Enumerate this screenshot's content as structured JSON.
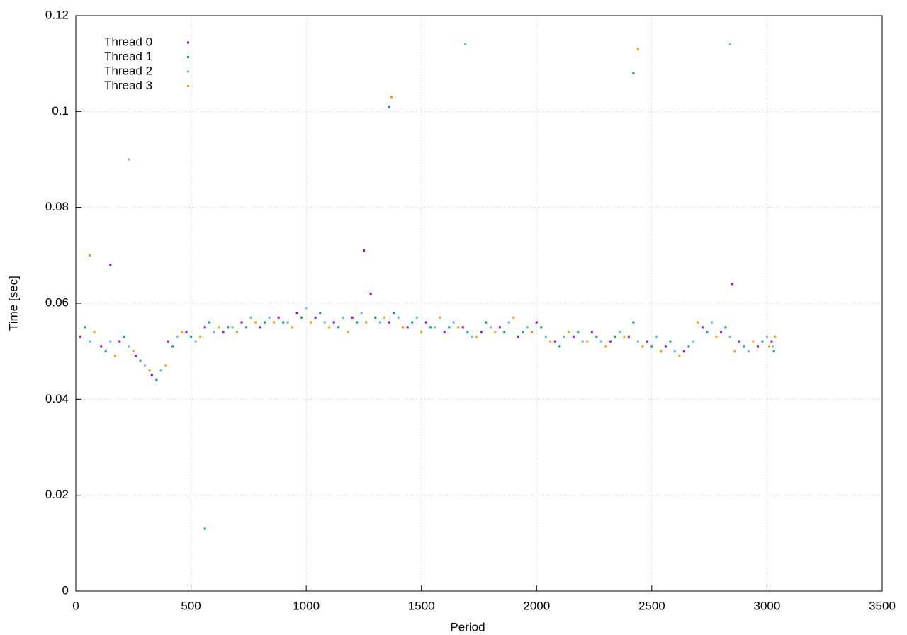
{
  "chart_data": {
    "type": "scatter",
    "xlabel": "Period",
    "ylabel": "Time [sec]",
    "xlim": [
      0,
      3500
    ],
    "ylim": [
      0,
      0.12
    ],
    "xticks": [
      0,
      500,
      1000,
      1500,
      2000,
      2500,
      3000,
      3500
    ],
    "yticks": [
      0,
      0.02,
      0.04,
      0.06,
      0.08,
      0.1,
      0.12
    ],
    "grid": true,
    "legend": "top-left",
    "series": [
      {
        "name": "Thread 0",
        "color": "#9400d3",
        "x": [
          20,
          110,
          190,
          260,
          330,
          400,
          480,
          560,
          640,
          720,
          800,
          880,
          960,
          1040,
          1120,
          1200,
          1280,
          1360,
          1440,
          1520,
          1600,
          1680,
          1760,
          1840,
          1920,
          2000,
          2080,
          2160,
          2240,
          2320,
          2400,
          2480,
          2560,
          2640,
          2720,
          2800,
          2880,
          2960,
          3020,
          150,
          1250,
          2850
        ],
        "values": [
          0.053,
          0.051,
          0.052,
          0.049,
          0.045,
          0.052,
          0.054,
          0.055,
          0.054,
          0.056,
          0.055,
          0.057,
          0.058,
          0.057,
          0.056,
          0.057,
          0.062,
          0.056,
          0.055,
          0.056,
          0.054,
          0.055,
          0.054,
          0.055,
          0.053,
          0.056,
          0.052,
          0.053,
          0.054,
          0.052,
          0.053,
          0.052,
          0.051,
          0.05,
          0.055,
          0.054,
          0.052,
          0.051,
          0.052,
          0.068,
          0.071,
          0.064
        ]
      },
      {
        "name": "Thread 1",
        "color": "#009e73",
        "x": [
          40,
          130,
          210,
          280,
          350,
          420,
          500,
          580,
          660,
          740,
          820,
          900,
          980,
          1060,
          1140,
          1220,
          1300,
          1380,
          1460,
          1540,
          1620,
          1700,
          1780,
          1860,
          1940,
          2020,
          2100,
          2180,
          2260,
          2340,
          2420,
          2500,
          2580,
          2660,
          2740,
          2820,
          2900,
          2980,
          3030,
          560,
          1360,
          2420
        ],
        "values": [
          0.055,
          0.05,
          0.053,
          0.048,
          0.044,
          0.051,
          0.053,
          0.056,
          0.055,
          0.055,
          0.056,
          0.056,
          0.057,
          0.058,
          0.055,
          0.056,
          0.057,
          0.058,
          0.056,
          0.055,
          0.055,
          0.054,
          0.056,
          0.054,
          0.054,
          0.055,
          0.051,
          0.054,
          0.053,
          0.053,
          0.056,
          0.051,
          0.052,
          0.051,
          0.054,
          0.055,
          0.051,
          0.052,
          0.05,
          0.013,
          0.101,
          0.108
        ]
      },
      {
        "name": "Thread 2",
        "color": "#56b4e9",
        "x": [
          60,
          150,
          230,
          300,
          370,
          440,
          520,
          600,
          680,
          760,
          840,
          920,
          1000,
          1080,
          1160,
          1240,
          1320,
          1400,
          1480,
          1560,
          1640,
          1720,
          1800,
          1880,
          1960,
          2040,
          2120,
          2200,
          2280,
          2360,
          2440,
          2520,
          2600,
          2680,
          2760,
          2840,
          2920,
          3000,
          3025,
          230,
          1690,
          2840
        ],
        "values": [
          0.052,
          0.052,
          0.051,
          0.047,
          0.046,
          0.053,
          0.052,
          0.054,
          0.055,
          0.057,
          0.057,
          0.056,
          0.059,
          0.056,
          0.057,
          0.058,
          0.056,
          0.057,
          0.057,
          0.055,
          0.056,
          0.053,
          0.055,
          0.056,
          0.055,
          0.053,
          0.053,
          0.052,
          0.052,
          0.054,
          0.052,
          0.053,
          0.05,
          0.052,
          0.056,
          0.053,
          0.05,
          0.053,
          0.051,
          0.09,
          0.114,
          0.114
        ]
      },
      {
        "name": "Thread 3",
        "color": "#e69f00",
        "x": [
          80,
          170,
          250,
          320,
          390,
          460,
          540,
          620,
          700,
          780,
          860,
          940,
          1020,
          1100,
          1180,
          1260,
          1340,
          1420,
          1500,
          1580,
          1660,
          1740,
          1820,
          1900,
          1980,
          2060,
          2140,
          2220,
          2300,
          2380,
          2460,
          2540,
          2620,
          2700,
          2780,
          2860,
          2940,
          3010,
          3035,
          60,
          1370,
          2440
        ],
        "values": [
          0.054,
          0.049,
          0.05,
          0.046,
          0.047,
          0.054,
          0.053,
          0.055,
          0.054,
          0.056,
          0.056,
          0.055,
          0.056,
          0.055,
          0.054,
          0.056,
          0.057,
          0.055,
          0.054,
          0.057,
          0.055,
          0.053,
          0.054,
          0.057,
          0.054,
          0.052,
          0.054,
          0.052,
          0.051,
          0.053,
          0.051,
          0.05,
          0.049,
          0.056,
          0.053,
          0.05,
          0.052,
          0.051,
          0.053,
          0.07,
          0.103,
          0.113
        ]
      }
    ]
  }
}
